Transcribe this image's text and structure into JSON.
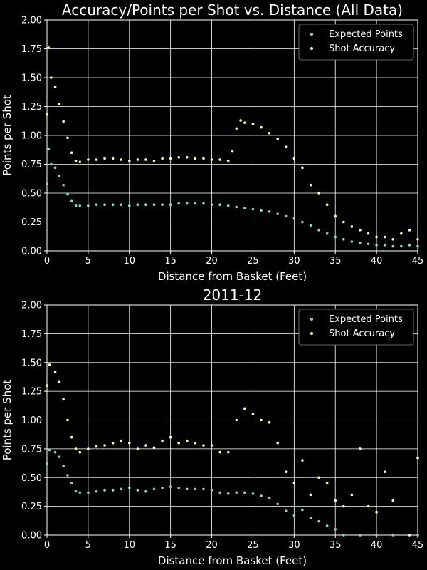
{
  "chart_data": [
    {
      "type": "scatter",
      "title": "Accuracy/Points per Shot vs. Distance (All Data)",
      "xlabel": "Distance from Basket (Feet)",
      "ylabel": "Points per Shot",
      "xlim": [
        0,
        45
      ],
      "ylim": [
        0,
        2
      ],
      "x_ticks": [
        0,
        5,
        10,
        15,
        20,
        25,
        30,
        35,
        40,
        45
      ],
      "y_ticks": [
        0,
        0.25,
        0.5,
        0.75,
        1.0,
        1.25,
        1.5,
        1.75,
        2.0
      ],
      "x_tick_labels": [
        "0",
        "5",
        "10",
        "15",
        "20",
        "25",
        "30",
        "35",
        "40",
        "45"
      ],
      "y_tick_labels": [
        "0.00",
        "0.25",
        "0.50",
        "0.75",
        "1.00",
        "1.25",
        "1.50",
        "1.75",
        "2.00"
      ],
      "grid": true,
      "legend": "top-right",
      "series": [
        {
          "name": "Expected Points",
          "color": "#8dd3c7",
          "points": [
            [
              0,
              0.58
            ],
            [
              0.2,
              0.88
            ],
            [
              0.5,
              0.75
            ],
            [
              1,
              0.72
            ],
            [
              1.5,
              0.65
            ],
            [
              2,
              0.57
            ],
            [
              2.5,
              0.49
            ],
            [
              3,
              0.43
            ],
            [
              3.5,
              0.39
            ],
            [
              4,
              0.39
            ],
            [
              5,
              0.39
            ],
            [
              6,
              0.4
            ],
            [
              7,
              0.4
            ],
            [
              8,
              0.4
            ],
            [
              9,
              0.4
            ],
            [
              10,
              0.39
            ],
            [
              11,
              0.4
            ],
            [
              12,
              0.4
            ],
            [
              13,
              0.4
            ],
            [
              14,
              0.4
            ],
            [
              15,
              0.4
            ],
            [
              16,
              0.41
            ],
            [
              17,
              0.41
            ],
            [
              18,
              0.41
            ],
            [
              19,
              0.41
            ],
            [
              20,
              0.4
            ],
            [
              21,
              0.4
            ],
            [
              22,
              0.39
            ],
            [
              23,
              0.38
            ],
            [
              24,
              0.37
            ],
            [
              25,
              0.36
            ],
            [
              26,
              0.35
            ],
            [
              27,
              0.34
            ],
            [
              28,
              0.32
            ],
            [
              29,
              0.3
            ],
            [
              30,
              0.28
            ],
            [
              31,
              0.25
            ],
            [
              32,
              0.22
            ],
            [
              33,
              0.18
            ],
            [
              34,
              0.15
            ],
            [
              35,
              0.12
            ],
            [
              36,
              0.1
            ],
            [
              37,
              0.08
            ],
            [
              38,
              0.07
            ],
            [
              39,
              0.06
            ],
            [
              40,
              0.05
            ],
            [
              41,
              0.05
            ],
            [
              42,
              0.04
            ],
            [
              43,
              0.04
            ],
            [
              44,
              0.05
            ],
            [
              45,
              0.04
            ]
          ]
        },
        {
          "name": "Shot Accuracy",
          "color": "#ffffb3",
          "points": [
            [
              0,
              1.18
            ],
            [
              0.2,
              1.76
            ],
            [
              0.5,
              1.5
            ],
            [
              1,
              1.42
            ],
            [
              1.5,
              1.27
            ],
            [
              2,
              1.12
            ],
            [
              2.5,
              0.98
            ],
            [
              3,
              0.85
            ],
            [
              3.5,
              0.78
            ],
            [
              4,
              0.77
            ],
            [
              5,
              0.79
            ],
            [
              6,
              0.79
            ],
            [
              7,
              0.8
            ],
            [
              8,
              0.8
            ],
            [
              9,
              0.79
            ],
            [
              10,
              0.78
            ],
            [
              11,
              0.79
            ],
            [
              12,
              0.79
            ],
            [
              13,
              0.78
            ],
            [
              14,
              0.8
            ],
            [
              15,
              0.8
            ],
            [
              16,
              0.81
            ],
            [
              17,
              0.81
            ],
            [
              18,
              0.8
            ],
            [
              19,
              0.8
            ],
            [
              20,
              0.79
            ],
            [
              21,
              0.79
            ],
            [
              22,
              0.78
            ],
            [
              22.5,
              0.86
            ],
            [
              23,
              1.06
            ],
            [
              23.5,
              1.13
            ],
            [
              24,
              1.11
            ],
            [
              25,
              1.1
            ],
            [
              26,
              1.07
            ],
            [
              27,
              1.02
            ],
            [
              28,
              0.97
            ],
            [
              29,
              0.9
            ],
            [
              30,
              0.8
            ],
            [
              31,
              0.72
            ],
            [
              32,
              0.57
            ],
            [
              33,
              0.5
            ],
            [
              34,
              0.4
            ],
            [
              35,
              0.3
            ],
            [
              36,
              0.25
            ],
            [
              37,
              0.21
            ],
            [
              38,
              0.18
            ],
            [
              39,
              0.15
            ],
            [
              40,
              0.12
            ],
            [
              41,
              0.12
            ],
            [
              42,
              0.1
            ],
            [
              43,
              0.15
            ],
            [
              44,
              0.18
            ],
            [
              45,
              0.1
            ]
          ]
        }
      ]
    },
    {
      "type": "scatter",
      "title": "2011-12",
      "xlabel": "Distance from Basket (Feet)",
      "ylabel": "Points per Shot",
      "xlim": [
        0,
        45
      ],
      "ylim": [
        0,
        2
      ],
      "x_ticks": [
        0,
        5,
        10,
        15,
        20,
        25,
        30,
        35,
        40,
        45
      ],
      "y_ticks": [
        0,
        0.25,
        0.5,
        0.75,
        1.0,
        1.25,
        1.5,
        1.75,
        2.0
      ],
      "x_tick_labels": [
        "0",
        "5",
        "10",
        "15",
        "20",
        "25",
        "30",
        "35",
        "40",
        "45"
      ],
      "y_tick_labels": [
        "0.00",
        "0.25",
        "0.50",
        "0.75",
        "1.00",
        "1.25",
        "1.50",
        "1.75",
        "2.00"
      ],
      "grid": true,
      "legend": "top-right",
      "series": [
        {
          "name": "Expected Points",
          "color": "#8dd3c7",
          "points": [
            [
              0,
              0.62
            ],
            [
              0.3,
              0.74
            ],
            [
              1,
              0.72
            ],
            [
              1.5,
              0.68
            ],
            [
              2,
              0.6
            ],
            [
              2.5,
              0.52
            ],
            [
              3,
              0.45
            ],
            [
              3.5,
              0.38
            ],
            [
              4,
              0.37
            ],
            [
              5,
              0.37
            ],
            [
              6,
              0.38
            ],
            [
              7,
              0.39
            ],
            [
              8,
              0.39
            ],
            [
              9,
              0.4
            ],
            [
              10,
              0.41
            ],
            [
              11,
              0.39
            ],
            [
              12,
              0.38
            ],
            [
              13,
              0.4
            ],
            [
              14,
              0.41
            ],
            [
              15,
              0.42
            ],
            [
              16,
              0.41
            ],
            [
              17,
              0.4
            ],
            [
              18,
              0.4
            ],
            [
              19,
              0.4
            ],
            [
              20,
              0.39
            ],
            [
              21,
              0.37
            ],
            [
              22,
              0.36
            ],
            [
              23,
              0.37
            ],
            [
              24,
              0.37
            ],
            [
              25,
              0.36
            ],
            [
              26,
              0.34
            ],
            [
              27,
              0.32
            ],
            [
              28,
              0.27
            ],
            [
              29,
              0.21
            ],
            [
              30,
              0.17
            ],
            [
              31,
              0.22
            ],
            [
              32,
              0.15
            ],
            [
              33,
              0.12
            ],
            [
              34,
              0.08
            ],
            [
              35,
              0.05
            ],
            [
              36,
              0.0
            ],
            [
              38,
              0.0
            ],
            [
              40,
              0.0
            ],
            [
              42,
              0.0
            ],
            [
              45,
              0.0
            ]
          ]
        },
        {
          "name": "Shot Accuracy",
          "color": "#ffffb3",
          "points": [
            [
              0,
              1.3
            ],
            [
              0.3,
              1.48
            ],
            [
              1,
              1.42
            ],
            [
              1.5,
              1.33
            ],
            [
              2,
              1.18
            ],
            [
              2.5,
              1.0
            ],
            [
              3,
              0.85
            ],
            [
              3.5,
              0.75
            ],
            [
              4,
              0.72
            ],
            [
              5,
              0.75
            ],
            [
              6,
              0.77
            ],
            [
              7,
              0.78
            ],
            [
              8,
              0.8
            ],
            [
              9,
              0.82
            ],
            [
              10,
              0.8
            ],
            [
              11,
              0.75
            ],
            [
              12,
              0.78
            ],
            [
              13,
              0.76
            ],
            [
              14,
              0.82
            ],
            [
              15,
              0.85
            ],
            [
              16,
              0.8
            ],
            [
              17,
              0.82
            ],
            [
              18,
              0.8
            ],
            [
              19,
              0.78
            ],
            [
              20,
              0.78
            ],
            [
              21,
              0.72
            ],
            [
              22,
              0.72
            ],
            [
              23,
              1.0
            ],
            [
              24,
              1.1
            ],
            [
              25,
              1.05
            ],
            [
              26,
              1.0
            ],
            [
              27,
              0.98
            ],
            [
              28,
              0.8
            ],
            [
              29,
              0.55
            ],
            [
              30,
              0.45
            ],
            [
              31,
              0.65
            ],
            [
              32,
              0.35
            ],
            [
              33,
              0.5
            ],
            [
              34,
              0.45
            ],
            [
              35,
              0.3
            ],
            [
              36,
              0.25
            ],
            [
              37,
              0.35
            ],
            [
              38,
              0.75
            ],
            [
              39,
              0.25
            ],
            [
              40,
              0.2
            ],
            [
              41,
              0.55
            ],
            [
              42,
              0.3
            ],
            [
              44,
              0.0
            ],
            [
              45,
              0.67
            ]
          ]
        }
      ]
    }
  ]
}
